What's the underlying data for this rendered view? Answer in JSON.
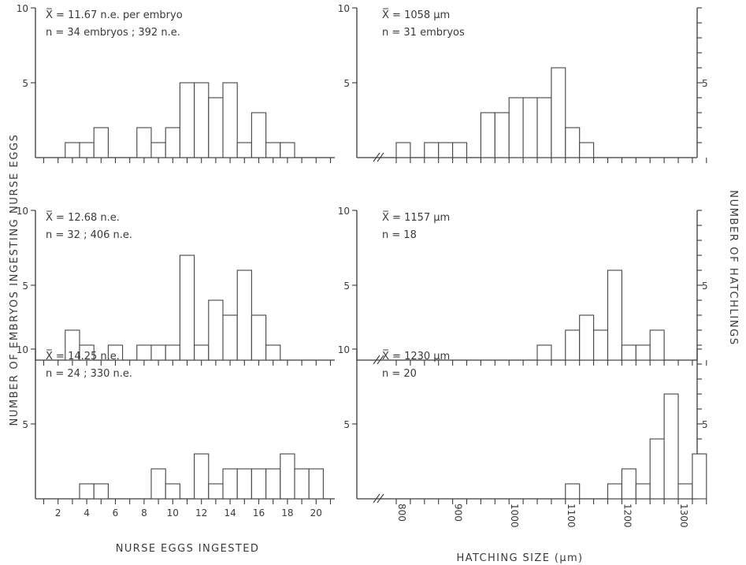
{
  "chart_data": {
    "type": "bar",
    "left_axis_label": "NUMBER OF EMBRYOS INGESTING NURSE EGGS",
    "right_axis_label": "NUMBER OF HATCHLINGS",
    "left_xlabel": "NURSE EGGS INGESTED",
    "right_xlabel": "HATCHING SIZE (µm)",
    "left_xticks": [
      "2",
      "4",
      "6",
      "8",
      "10",
      "12",
      "14",
      "16",
      "18",
      "20"
    ],
    "right_xticks": [
      "800",
      "900",
      "1000",
      "1100",
      "1200",
      "1300"
    ],
    "ylim": [
      0,
      10
    ],
    "yticks": [
      "10",
      "5"
    ],
    "panels": [
      {
        "side": "left",
        "row": 0,
        "ann1": "X̅ = 11.67 n.e. per embryo",
        "ann2": "n = 34 embryos ;  392 n.e.",
        "x": [
          3,
          4,
          5,
          8,
          9,
          10,
          11,
          12,
          13,
          14,
          15,
          16,
          17,
          18
        ],
        "values": [
          1,
          1,
          2,
          2,
          1,
          2,
          5,
          5,
          4,
          5,
          1,
          3,
          1,
          1
        ]
      },
      {
        "side": "left",
        "row": 1,
        "ann1": "X̅ = 12.68 n.e.",
        "ann2": "n = 32     ;  406 n.e.",
        "x": [
          3,
          4,
          5,
          6,
          7,
          8,
          9,
          10,
          11,
          12,
          13,
          14,
          15,
          16,
          17,
          18
        ],
        "values": [
          2,
          1,
          0,
          1,
          0,
          1,
          1,
          1,
          7,
          1,
          4,
          3,
          6,
          3,
          1,
          0
        ]
      },
      {
        "side": "left",
        "row": 2,
        "ann1": "X̅ = 14.25 n.e.",
        "ann2": "n = 24     ;  330 n.e.",
        "x": [
          4,
          5,
          9,
          10,
          12,
          13,
          14,
          15,
          16,
          17,
          18,
          19,
          20
        ],
        "values": [
          1,
          1,
          2,
          1,
          3,
          1,
          2,
          2,
          2,
          2,
          3,
          2,
          2
        ]
      },
      {
        "side": "right",
        "row": 0,
        "ann1": "X̅ = 1058 µm",
        "ann2": "n = 31 embryos",
        "x": [
          800,
          850,
          875,
          900,
          950,
          975,
          1000,
          1025,
          1050,
          1075,
          1100,
          1125,
          1150
        ],
        "values": [
          1,
          1,
          1,
          1,
          3,
          3,
          4,
          4,
          4,
          6,
          2,
          1,
          0
        ]
      },
      {
        "side": "right",
        "row": 1,
        "ann1": "X̅ = 1157 µm",
        "ann2": "n = 18",
        "x": [
          1050,
          1100,
          1125,
          1150,
          1175,
          1200,
          1225,
          1250
        ],
        "values": [
          1,
          2,
          3,
          2,
          6,
          1,
          1,
          2
        ]
      },
      {
        "side": "right",
        "row": 2,
        "ann1": "X̅ = 1230 µm",
        "ann2": "n = 20",
        "x": [
          1100,
          1175,
          1200,
          1225,
          1250,
          1275,
          1300,
          1325
        ],
        "values": [
          1,
          1,
          2,
          1,
          4,
          7,
          1,
          3
        ]
      }
    ]
  }
}
